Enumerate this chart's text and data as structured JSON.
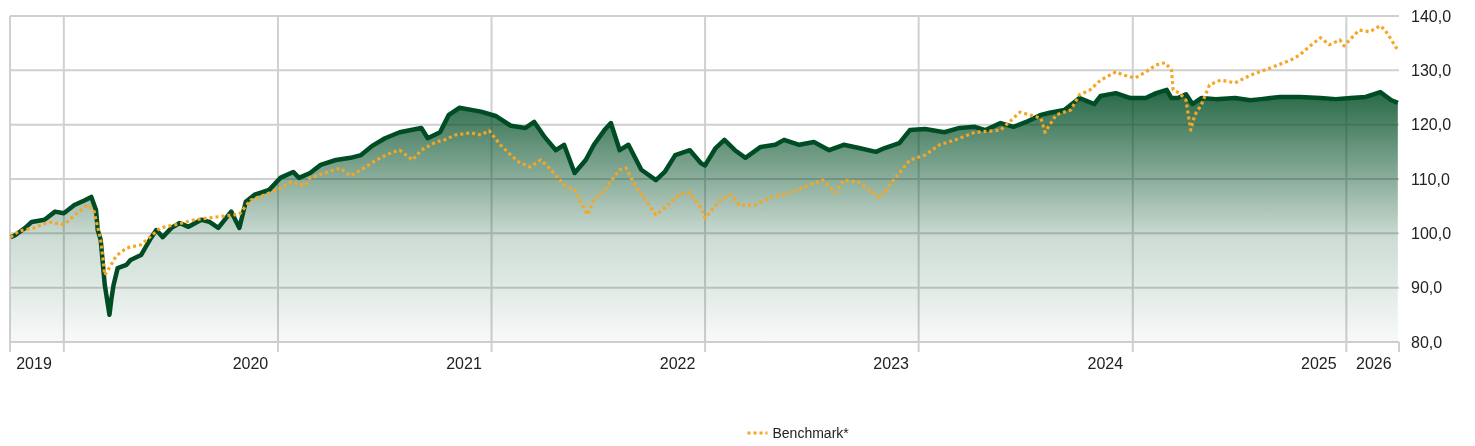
{
  "chart_data": {
    "type": "line",
    "xlim": [
      "2019-10-01",
      "2026-04-01"
    ],
    "xticks": [
      {
        "value": "2019-11-11",
        "label": "2019"
      },
      {
        "value": "2020-01-01",
        "label": null
      },
      {
        "value": "2020-11-15",
        "label": "2020"
      },
      {
        "value": "2021-01-01",
        "label": null
      },
      {
        "value": "2021-11-15",
        "label": "2021"
      },
      {
        "value": "2022-01-01",
        "label": null
      },
      {
        "value": "2022-11-15",
        "label": "2022"
      },
      {
        "value": "2023-01-01",
        "label": null
      },
      {
        "value": "2023-11-15",
        "label": "2023"
      },
      {
        "value": "2024-01-01",
        "label": null
      },
      {
        "value": "2024-11-15",
        "label": "2024"
      },
      {
        "value": "2025-01-01",
        "label": null
      },
      {
        "value": "2025-11-15",
        "label": "2025"
      },
      {
        "value": "2026-01-01",
        "label": null
      },
      {
        "value": "2026-02-17",
        "label": "2026"
      }
    ],
    "ylim": [
      80,
      140
    ],
    "yticks": [
      {
        "value": 80,
        "label": "80,0"
      },
      {
        "value": 90,
        "label": "90,0"
      },
      {
        "value": 100,
        "label": "100,0"
      },
      {
        "value": 110,
        "label": "110,0"
      },
      {
        "value": 120,
        "label": "120,0"
      },
      {
        "value": 130,
        "label": "130,0"
      },
      {
        "value": 140,
        "label": "140,0"
      }
    ],
    "grid": true,
    "legend": "bottom",
    "series": [
      {
        "name": "Benchmark*",
        "line_style": "dotted",
        "color": "#f5a623",
        "x": [
          "2019-10-02",
          "2019-10-16",
          "2019-11-11",
          "2019-12-06",
          "2020-01-01",
          "2020-01-27",
          "2020-02-10",
          "2020-02-21",
          "2020-03-04",
          "2020-03-11",
          "2020-03-22",
          "2020-03-30",
          "2020-04-17",
          "2020-05-12",
          "2020-05-27",
          "2020-06-14",
          "2020-07-10",
          "2020-08-12",
          "2020-09-17",
          "2020-10-27",
          "2020-11-15",
          "2020-12-10",
          "2021-01-05",
          "2021-01-23",
          "2021-02-17",
          "2021-02-25",
          "2021-03-22",
          "2021-04-17",
          "2021-05-05",
          "2021-05-23",
          "2021-06-18",
          "2021-07-13",
          "2021-07-28",
          "2021-08-19",
          "2021-09-03",
          "2021-09-28",
          "2021-10-13",
          "2021-10-31",
          "2021-11-26",
          "2021-12-14",
          "2021-12-28",
          "2022-01-16",
          "2022-02-03",
          "2022-02-17",
          "2022-03-08",
          "2022-03-26",
          "2022-04-10",
          "2022-05-05",
          "2022-05-23",
          "2022-06-14",
          "2022-06-25",
          "2022-07-13",
          "2022-08-08",
          "2022-08-19",
          "2022-09-03",
          "2022-09-21",
          "2022-10-09",
          "2022-10-24",
          "2022-11-18",
          "2022-12-06",
          "2022-12-25",
          "2023-01-01",
          "2023-01-27",
          "2023-02-14",
          "2023-02-28",
          "2023-03-26",
          "2023-04-21",
          "2023-05-27",
          "2023-06-28",
          "2023-07-21",
          "2023-08-12",
          "2023-08-26",
          "2023-09-21",
          "2023-10-20",
          "2023-10-27",
          "2023-11-22",
          "2023-12-17",
          "2024-01-12",
          "2024-02-06",
          "2024-03-04",
          "2024-04-06",
          "2024-05-20",
          "2024-06-22",
          "2024-07-28",
          "2024-08-04",
          "2024-08-23",
          "2024-09-17",
          "2024-10-02",
          "2024-10-20",
          "2024-11-07",
          "2024-12-03",
          "2024-12-17",
          "2025-01-05",
          "2025-01-23",
          "2025-02-10",
          "2025-02-25",
          "2025-03-08",
          "2025-03-11",
          "2025-03-22",
          "2025-04-02",
          "2025-04-10",
          "2025-04-17",
          "2025-04-28",
          "2025-05-12",
          "2025-05-31",
          "2025-06-25",
          "2025-07-21",
          "2025-08-23",
          "2025-09-28",
          "2025-10-13",
          "2025-10-31",
          "2025-11-18",
          "2025-12-03",
          "2025-12-21",
          "2025-12-28",
          "2026-01-12",
          "2026-01-23",
          "2026-02-10",
          "2026-02-28",
          "2026-03-08",
          "2026-03-19",
          "2026-03-30"
        ],
        "values": [
          99.3,
          100.4,
          101,
          102.1,
          101.6,
          104,
          105.2,
          104.3,
          98.8,
          92.3,
          94.2,
          95.8,
          97.3,
          97.9,
          99.3,
          101,
          101.6,
          102.5,
          103,
          103.5,
          106.1,
          107.1,
          108.3,
          109.4,
          108.8,
          110.2,
          111.1,
          112,
          110.6,
          111.7,
          113.5,
          114.8,
          115.3,
          113.5,
          115.3,
          116.8,
          117.2,
          118.1,
          118.5,
          118.1,
          118.9,
          116.3,
          114.4,
          113.1,
          112.2,
          113.5,
          112,
          108.9,
          108,
          103.4,
          106.1,
          108,
          111.7,
          112,
          108.9,
          106.1,
          103.4,
          104.7,
          107.1,
          107.5,
          104.7,
          102.8,
          106.1,
          107.1,
          105.2,
          105.2,
          106.5,
          107.5,
          108.9,
          109.8,
          107.5,
          109.8,
          109.4,
          107.1,
          106.5,
          110.2,
          113.5,
          114.4,
          116.3,
          117.2,
          118.6,
          119,
          122.3,
          121.2,
          118.6,
          121.8,
          122.7,
          125.5,
          126.4,
          128.2,
          129.7,
          129.1,
          128.6,
          129.7,
          131,
          131.4,
          130.1,
          126.4,
          125.8,
          124.5,
          119,
          121.8,
          123.6,
          127.3,
          128.2,
          127.7,
          129.1,
          130.4,
          131.9,
          132.8,
          134.5,
          136,
          134.7,
          135.6,
          134.5,
          136.2,
          137.4,
          137.1,
          138.2,
          137.4,
          135.6,
          133.7
        ]
      },
      {
        "type": "area",
        "color": "#004d25",
        "x": [
          "2019-10-02",
          "2019-10-09",
          "2019-10-27",
          "2019-11-07",
          "2019-11-29",
          "2019-12-17",
          "2020-01-01",
          "2020-01-19",
          "2020-02-06",
          "2020-02-17",
          "2020-02-25",
          "2020-02-28",
          "2020-03-04",
          "2020-03-11",
          "2020-03-19",
          "2020-03-22",
          "2020-03-26",
          "2020-04-02",
          "2020-04-17",
          "2020-04-24",
          "2020-05-12",
          "2020-05-27",
          "2020-06-07",
          "2020-06-18",
          "2020-07-03",
          "2020-07-17",
          "2020-08-01",
          "2020-08-23",
          "2020-09-06",
          "2020-09-21",
          "2020-10-13",
          "2020-10-27",
          "2020-11-07",
          "2020-11-22",
          "2020-12-17",
          "2021-01-05",
          "2021-01-27",
          "2021-02-06",
          "2021-02-25",
          "2021-03-15",
          "2021-04-10",
          "2021-05-05",
          "2021-05-23",
          "2021-06-11",
          "2021-07-03",
          "2021-07-28",
          "2021-09-03",
          "2021-09-14",
          "2021-10-05",
          "2021-10-20",
          "2021-11-07",
          "2021-12-14",
          "2022-01-08",
          "2022-02-03",
          "2022-02-28",
          "2022-03-15",
          "2022-04-02",
          "2022-04-21",
          "2022-05-05",
          "2022-05-23",
          "2022-06-11",
          "2022-06-25",
          "2022-07-13",
          "2022-07-24",
          "2022-08-08",
          "2022-08-23",
          "2022-09-14",
          "2022-10-09",
          "2022-10-24",
          "2022-11-11",
          "2022-12-06",
          "2022-12-25",
          "2023-01-01",
          "2023-01-19",
          "2023-02-03",
          "2023-02-21",
          "2023-03-11",
          "2023-04-06",
          "2023-05-01",
          "2023-05-16",
          "2023-06-11",
          "2023-07-06",
          "2023-08-01",
          "2023-08-26",
          "2023-09-21",
          "2023-10-20",
          "2023-11-04",
          "2023-11-29",
          "2023-12-17",
          "2024-01-12",
          "2024-02-14",
          "2024-03-11",
          "2024-04-06",
          "2024-04-24",
          "2024-05-20",
          "2024-06-11",
          "2024-07-03",
          "2024-07-28",
          "2024-08-12",
          "2024-09-06",
          "2024-10-02",
          "2024-10-27",
          "2024-11-07",
          "2024-12-03",
          "2024-12-28",
          "2025-01-23",
          "2025-02-10",
          "2025-02-28",
          "2025-03-08",
          "2025-03-19",
          "2025-04-02",
          "2025-04-13",
          "2025-04-28",
          "2025-05-23",
          "2025-06-25",
          "2025-07-21",
          "2025-08-08",
          "2025-09-10",
          "2025-10-13",
          "2025-11-18",
          "2025-12-14",
          "2026-01-08",
          "2026-02-03",
          "2026-02-28",
          "2026-03-19",
          "2026-03-30"
        ],
        "values": [
          99.3,
          99.6,
          101,
          102.1,
          102.5,
          104,
          103.7,
          105.2,
          106.1,
          106.7,
          104.3,
          100.6,
          98.8,
          90.5,
          85,
          87.7,
          90.5,
          93.6,
          94.2,
          95.1,
          96,
          98.8,
          100.6,
          99.3,
          101,
          101.9,
          101.2,
          102.5,
          102.1,
          101,
          104,
          101,
          105.8,
          107.1,
          108,
          110.2,
          111.3,
          110.2,
          111.1,
          112.6,
          113.5,
          113.9,
          114.4,
          116.1,
          117.5,
          118.6,
          119.4,
          117.5,
          118.6,
          121.8,
          123.1,
          122.4,
          121.6,
          119.8,
          119.4,
          120.5,
          117.7,
          115.3,
          116.3,
          111.1,
          113.5,
          116.3,
          119,
          120.3,
          115.3,
          116.3,
          111.7,
          109.8,
          111.3,
          114.4,
          115.3,
          112.9,
          112.5,
          115.7,
          117.2,
          115.3,
          113.9,
          115.9,
          116.3,
          117.2,
          116.3,
          116.8,
          115.3,
          116.3,
          115.7,
          115,
          115.7,
          116.6,
          119,
          119.2,
          118.6,
          119.4,
          119.6,
          119,
          120.3,
          119.6,
          120.5,
          121.8,
          122.2,
          122.7,
          124.9,
          123.8,
          125.3,
          125.8,
          124.9,
          124.9,
          125.8,
          126.4,
          124.9,
          124.9,
          125.6,
          123.8,
          124.9,
          124.7,
          124.9,
          124.5,
          124.7,
          125.1,
          125.1,
          124.9,
          124.7,
          124.9,
          125.1,
          126,
          124.5,
          124
        ]
      }
    ]
  }
}
